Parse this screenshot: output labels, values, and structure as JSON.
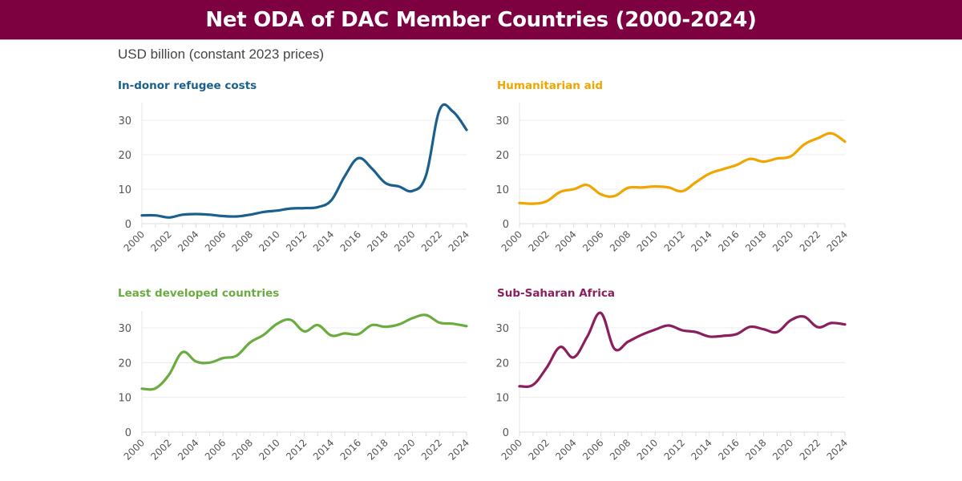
{
  "header": {
    "title": "Net ODA of DAC  Member Countries (2000-2024)"
  },
  "units_label": "USD billion (constant 2023 prices)",
  "chart_data": [
    {
      "type": "line",
      "title": "In-donor refugee costs",
      "color": "#1a5f8e",
      "ylabel": "USD billion (constant 2023 prices)",
      "xlabel": "",
      "ylim": [
        0,
        35
      ],
      "yticks": [
        0,
        10,
        20,
        30
      ],
      "xticks": [
        2000,
        2002,
        2004,
        2006,
        2008,
        2010,
        2012,
        2014,
        2016,
        2018,
        2020,
        2022,
        2024
      ],
      "grid": true,
      "x": [
        2000,
        2001,
        2002,
        2003,
        2004,
        2005,
        2006,
        2007,
        2008,
        2009,
        2010,
        2011,
        2012,
        2013,
        2014,
        2015,
        2016,
        2017,
        2018,
        2019,
        2020,
        2021,
        2022,
        2023,
        2024
      ],
      "values": [
        2.4,
        2.4,
        1.8,
        2.6,
        2.8,
        2.6,
        2.2,
        2.1,
        2.6,
        3.4,
        3.8,
        4.4,
        4.5,
        4.8,
        6.8,
        13.8,
        19.0,
        16.0,
        11.8,
        10.8,
        9.5,
        14.0,
        33.0,
        32.5,
        27.2
      ]
    },
    {
      "type": "line",
      "title": "Humanitarian aid",
      "color": "#f0a500",
      "ylabel": "USD billion (constant 2023 prices)",
      "xlabel": "",
      "ylim": [
        0,
        35
      ],
      "yticks": [
        0,
        10,
        20,
        30
      ],
      "xticks": [
        2000,
        2002,
        2004,
        2006,
        2008,
        2010,
        2012,
        2014,
        2016,
        2018,
        2020,
        2022,
        2024
      ],
      "grid": true,
      "x": [
        2000,
        2001,
        2002,
        2003,
        2004,
        2005,
        2006,
        2007,
        2008,
        2009,
        2010,
        2011,
        2012,
        2013,
        2014,
        2015,
        2016,
        2017,
        2018,
        2019,
        2020,
        2021,
        2022,
        2023,
        2024
      ],
      "values": [
        6.0,
        5.8,
        6.5,
        9.2,
        10.0,
        11.2,
        8.5,
        8.0,
        10.4,
        10.5,
        10.8,
        10.5,
        9.4,
        12.0,
        14.5,
        15.8,
        17.0,
        18.8,
        18.0,
        18.9,
        19.5,
        23.0,
        24.8,
        26.2,
        23.8
      ]
    },
    {
      "type": "line",
      "title": "Least developed countries",
      "color": "#6aac3f",
      "ylabel": "USD billion (constant 2023 prices)",
      "xlabel": "",
      "ylim": [
        0,
        35
      ],
      "yticks": [
        0,
        10,
        20,
        30
      ],
      "xticks": [
        2000,
        2002,
        2004,
        2006,
        2008,
        2010,
        2012,
        2014,
        2016,
        2018,
        2020,
        2022,
        2024
      ],
      "grid": true,
      "x": [
        2000,
        2001,
        2002,
        2003,
        2004,
        2005,
        2006,
        2007,
        2008,
        2009,
        2010,
        2011,
        2012,
        2013,
        2014,
        2015,
        2016,
        2017,
        2018,
        2019,
        2020,
        2021,
        2022,
        2023,
        2024
      ],
      "values": [
        12.5,
        12.6,
        16.5,
        23.0,
        20.3,
        20.0,
        21.3,
        22.0,
        25.8,
        28.0,
        31.2,
        32.3,
        29.0,
        30.8,
        27.8,
        28.4,
        28.2,
        30.8,
        30.3,
        31.0,
        32.8,
        33.7,
        31.5,
        31.2,
        30.5
      ]
    },
    {
      "type": "line",
      "title": "Sub-Saharan Africa",
      "color": "#8b1f5e",
      "ylabel": "USD billion (constant 2023 prices)",
      "xlabel": "",
      "ylim": [
        0,
        35
      ],
      "yticks": [
        0,
        10,
        20,
        30
      ],
      "xticks": [
        2000,
        2002,
        2004,
        2006,
        2008,
        2010,
        2012,
        2014,
        2016,
        2018,
        2020,
        2022,
        2024
      ],
      "grid": true,
      "x": [
        2000,
        2001,
        2002,
        2003,
        2004,
        2005,
        2006,
        2007,
        2008,
        2009,
        2010,
        2011,
        2012,
        2013,
        2014,
        2015,
        2016,
        2017,
        2018,
        2019,
        2020,
        2021,
        2022,
        2023,
        2024
      ],
      "values": [
        13.2,
        13.6,
        18.5,
        24.5,
        21.5,
        27.5,
        34.3,
        24.0,
        26.0,
        28.0,
        29.5,
        30.7,
        29.3,
        28.8,
        27.5,
        27.7,
        28.2,
        30.3,
        29.6,
        28.8,
        32.2,
        33.2,
        30.2,
        31.4,
        31.0
      ]
    }
  ]
}
